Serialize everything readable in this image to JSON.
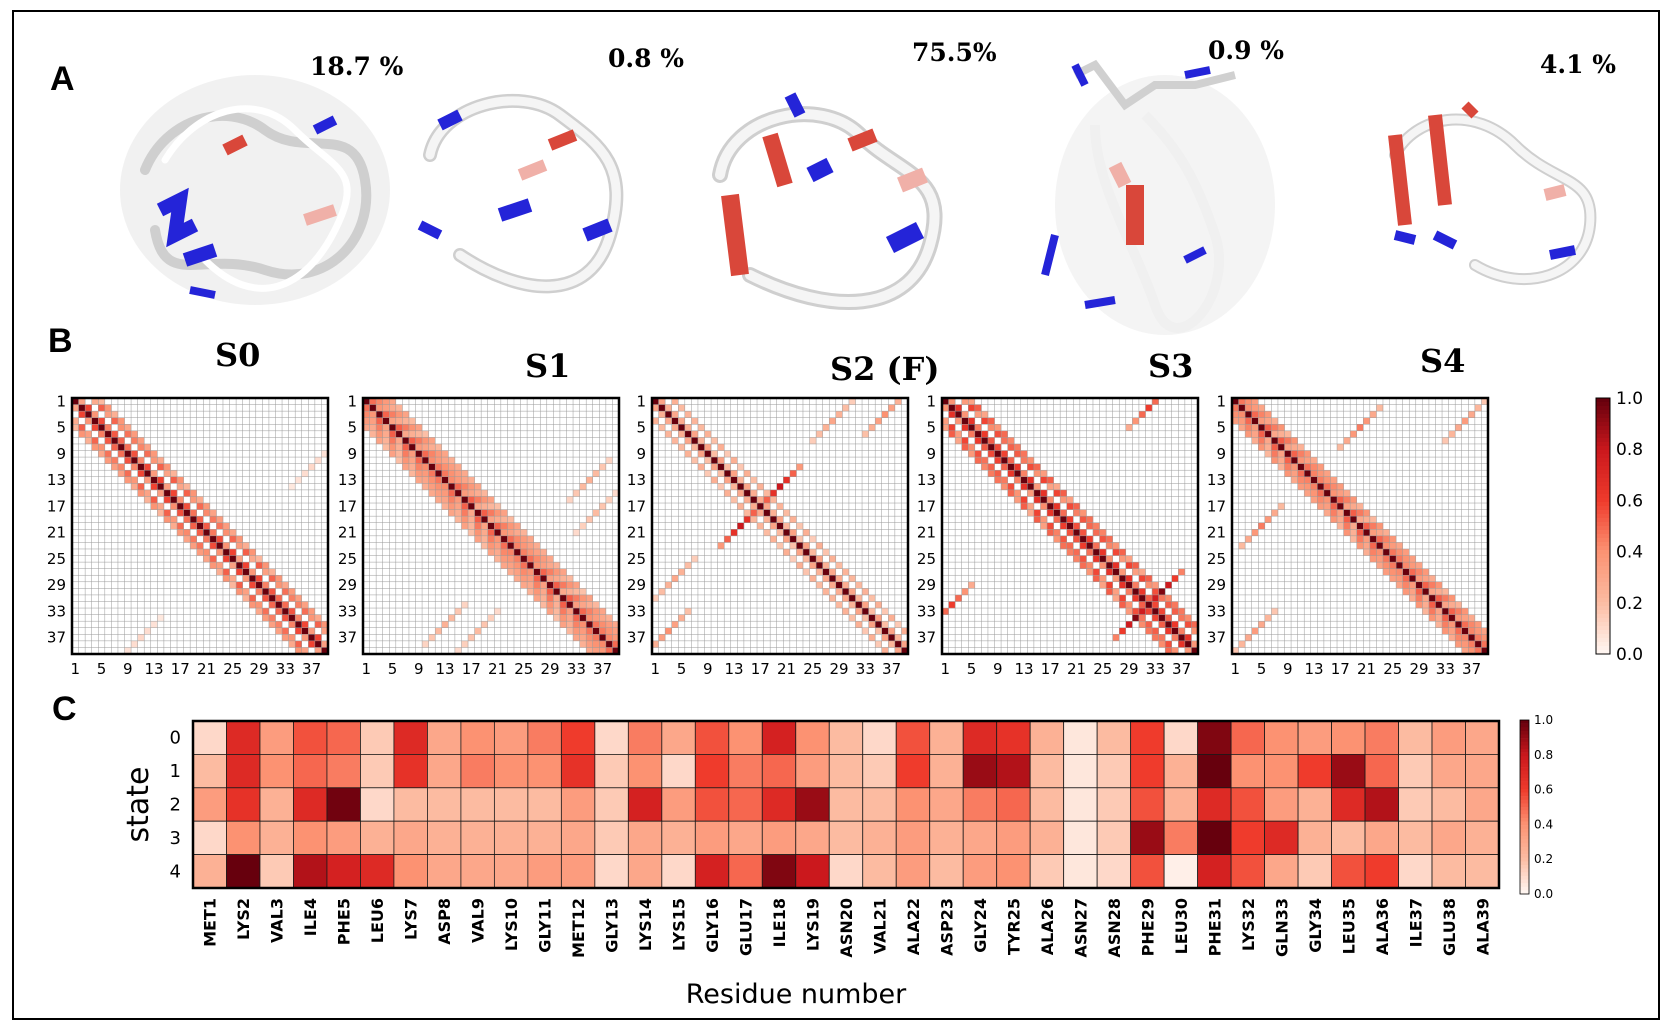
{
  "panels": {
    "a": "A",
    "b": "B",
    "c": "C"
  },
  "structures": [
    {
      "percent": "18.7 %"
    },
    {
      "percent": "0.8 %"
    },
    {
      "percent": "75.5%"
    },
    {
      "percent": "0.9 %"
    },
    {
      "percent": "4.1 %"
    }
  ],
  "colors": {
    "helix_blue": "#2424d8",
    "strand_red": "#d9473a",
    "coil_white": "#f2f2f2",
    "shadow": "#cfcfcf"
  },
  "chart_data": [
    {
      "type": "heatmap",
      "panel": "B",
      "description": "residue contact maps per state",
      "n_residues": 39,
      "tick_labels": [
        "1",
        "5",
        "9",
        "13",
        "17",
        "21",
        "25",
        "29",
        "33",
        "37"
      ],
      "colorbar": {
        "min": 0.0,
        "max": 1.0,
        "ticks": [
          "0.0",
          "0.2",
          "0.4",
          "0.6",
          "0.8",
          "1.0"
        ],
        "colormap": "Reds"
      },
      "maps": [
        {
          "title": "S0",
          "bands": [
            {
              "offset": 1,
              "value": 0.45
            },
            {
              "offset": 3,
              "value": 0.4
            },
            {
              "offset": 4,
              "value": 0.3
            }
          ],
          "off_diagonal": [
            {
              "i": 10,
              "j": 36,
              "value": 0.1
            }
          ]
        },
        {
          "title": "S1",
          "bands": [
            {
              "offset": 1,
              "value": 0.4
            },
            {
              "offset": 2,
              "value": 0.35
            },
            {
              "offset": 3,
              "value": 0.3
            },
            {
              "offset": 4,
              "value": 0.25
            }
          ],
          "off_diagonal": [
            {
              "i": 12,
              "j": 34,
              "value": 0.25
            },
            {
              "i": 17,
              "j": 35,
              "value": 0.2
            }
          ]
        },
        {
          "title": "S2 (F)",
          "bands": [
            {
              "offset": 1,
              "value": 0.25
            },
            {
              "offset": 3,
              "value": 0.2
            }
          ],
          "off_diagonal": [
            {
              "i": 2,
              "j": 35,
              "value": 0.4
            },
            {
              "i": 13,
              "j": 19,
              "value": 0.8
            },
            {
              "i": 3,
              "j": 27,
              "value": 0.3
            }
          ]
        },
        {
          "title": "S3",
          "bands": [
            {
              "offset": 1,
              "value": 0.5
            },
            {
              "offset": 3,
              "value": 0.45
            },
            {
              "offset": 4,
              "value": 0.4
            }
          ],
          "off_diagonal": [
            {
              "i": 1,
              "j": 31,
              "value": 0.6
            },
            {
              "i": 29,
              "j": 33,
              "value": 0.95
            }
          ]
        },
        {
          "title": "S4",
          "bands": [
            {
              "offset": 1,
              "value": 0.4
            },
            {
              "offset": 2,
              "value": 0.35
            },
            {
              "offset": 3,
              "value": 0.3
            }
          ],
          "off_diagonal": [
            {
              "i": 4,
              "j": 19,
              "value": 0.45
            },
            {
              "i": 3,
              "j": 35,
              "value": 0.35
            }
          ]
        }
      ]
    },
    {
      "type": "heatmap",
      "panel": "C",
      "xlabel": "Residue number",
      "ylabel": "state",
      "rows": [
        "0",
        "1",
        "2",
        "3",
        "4"
      ],
      "columns": [
        "MET1",
        "LYS2",
        "VAL3",
        "ILE4",
        "PHE5",
        "LEU6",
        "LYS7",
        "ASP8",
        "VAL9",
        "LYS10",
        "GLY11",
        "MET12",
        "GLY13",
        "LYS14",
        "LYS15",
        "GLY16",
        "GLU17",
        "ILE18",
        "LYS19",
        "ASN20",
        "VAL21",
        "ALA22",
        "ASP23",
        "GLY24",
        "TYR25",
        "ALA26",
        "ASN27",
        "ASN28",
        "PHE29",
        "LEU30",
        "PHE31",
        "LYS32",
        "GLN33",
        "GLY34",
        "LEU35",
        "ALA36",
        "ILE37",
        "GLU38",
        "ALA39"
      ],
      "values": [
        [
          0.1,
          0.7,
          0.35,
          0.55,
          0.5,
          0.15,
          0.7,
          0.3,
          0.4,
          0.35,
          0.45,
          0.6,
          0.1,
          0.45,
          0.3,
          0.55,
          0.4,
          0.75,
          0.4,
          0.2,
          0.1,
          0.55,
          0.25,
          0.7,
          0.65,
          0.25,
          0.05,
          0.2,
          0.6,
          0.1,
          0.95,
          0.5,
          0.4,
          0.35,
          0.4,
          0.45,
          0.2,
          0.35,
          0.3
        ],
        [
          0.2,
          0.7,
          0.4,
          0.5,
          0.45,
          0.15,
          0.65,
          0.3,
          0.45,
          0.4,
          0.4,
          0.65,
          0.15,
          0.4,
          0.1,
          0.6,
          0.45,
          0.5,
          0.35,
          0.2,
          0.15,
          0.6,
          0.25,
          0.9,
          0.85,
          0.2,
          0.05,
          0.15,
          0.6,
          0.25,
          1.0,
          0.4,
          0.4,
          0.6,
          0.9,
          0.5,
          0.15,
          0.3,
          0.3
        ],
        [
          0.35,
          0.65,
          0.25,
          0.7,
          0.98,
          0.1,
          0.2,
          0.2,
          0.2,
          0.2,
          0.2,
          0.35,
          0.15,
          0.75,
          0.35,
          0.55,
          0.5,
          0.7,
          0.9,
          0.2,
          0.2,
          0.4,
          0.3,
          0.45,
          0.5,
          0.2,
          0.05,
          0.15,
          0.55,
          0.25,
          0.7,
          0.55,
          0.35,
          0.25,
          0.7,
          0.85,
          0.15,
          0.2,
          0.3
        ],
        [
          0.1,
          0.4,
          0.25,
          0.4,
          0.35,
          0.25,
          0.3,
          0.25,
          0.25,
          0.25,
          0.25,
          0.3,
          0.15,
          0.3,
          0.25,
          0.35,
          0.3,
          0.35,
          0.3,
          0.2,
          0.25,
          0.35,
          0.25,
          0.3,
          0.35,
          0.25,
          0.05,
          0.15,
          0.9,
          0.45,
          1.0,
          0.6,
          0.7,
          0.25,
          0.2,
          0.3,
          0.2,
          0.3,
          0.25
        ],
        [
          0.25,
          1.0,
          0.15,
          0.85,
          0.75,
          0.7,
          0.4,
          0.3,
          0.3,
          0.3,
          0.35,
          0.35,
          0.1,
          0.3,
          0.1,
          0.75,
          0.5,
          0.95,
          0.8,
          0.1,
          0.2,
          0.35,
          0.2,
          0.35,
          0.4,
          0.15,
          0.05,
          0.1,
          0.55,
          0.02,
          0.75,
          0.55,
          0.3,
          0.15,
          0.55,
          0.6,
          0.1,
          0.2,
          0.2
        ]
      ],
      "colorbar": {
        "min": 0.0,
        "max": 1.0,
        "ticks": [
          "0.0",
          "0.2",
          "0.4",
          "0.6",
          "0.8",
          "1.0"
        ],
        "colormap": "Reds"
      }
    }
  ]
}
